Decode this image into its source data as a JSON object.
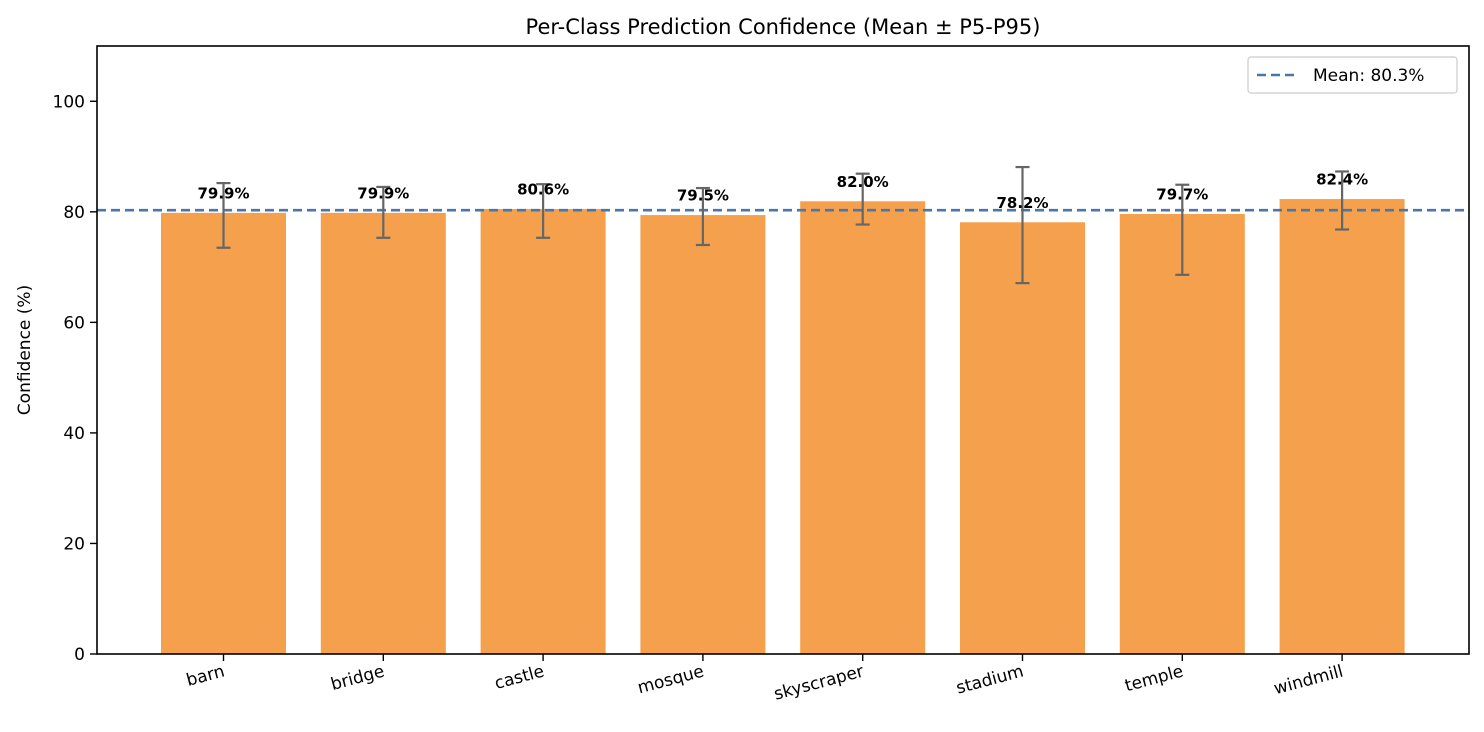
{
  "chart_data": {
    "type": "bar",
    "title": "Per-Class Prediction Confidence (Mean ± P5-P95)",
    "ylabel": "Confidence (%)",
    "xlabel": "",
    "categories": [
      "barn",
      "bridge",
      "castle",
      "mosque",
      "skyscraper",
      "stadium",
      "temple",
      "windmill"
    ],
    "values": [
      79.9,
      79.9,
      80.6,
      79.5,
      82.0,
      78.2,
      79.7,
      82.4
    ],
    "value_labels": [
      "79.9%",
      "79.9%",
      "80.6%",
      "79.5%",
      "82.0%",
      "78.2%",
      "79.7%",
      "82.4%"
    ],
    "error_low": [
      73.5,
      75.3,
      75.3,
      74.0,
      77.7,
      67.1,
      68.6,
      76.8
    ],
    "error_high": [
      85.2,
      84.5,
      85.0,
      84.3,
      86.9,
      88.1,
      84.9,
      87.3
    ],
    "ylim": [
      0,
      110
    ],
    "yticks": [
      0,
      20,
      40,
      60,
      80,
      100
    ],
    "ytick_labels": [
      "0",
      "20",
      "40",
      "60",
      "80",
      "100"
    ],
    "mean_line": {
      "value": 80.3,
      "label": "Mean: 80.3%"
    },
    "legend_position": "upper-right",
    "grid": false,
    "colors": {
      "bar": "#f4a04d",
      "bar_edge": "#ffffff",
      "error": "#666666",
      "mean_line": "#4a76a8",
      "axis": "#000000"
    }
  }
}
